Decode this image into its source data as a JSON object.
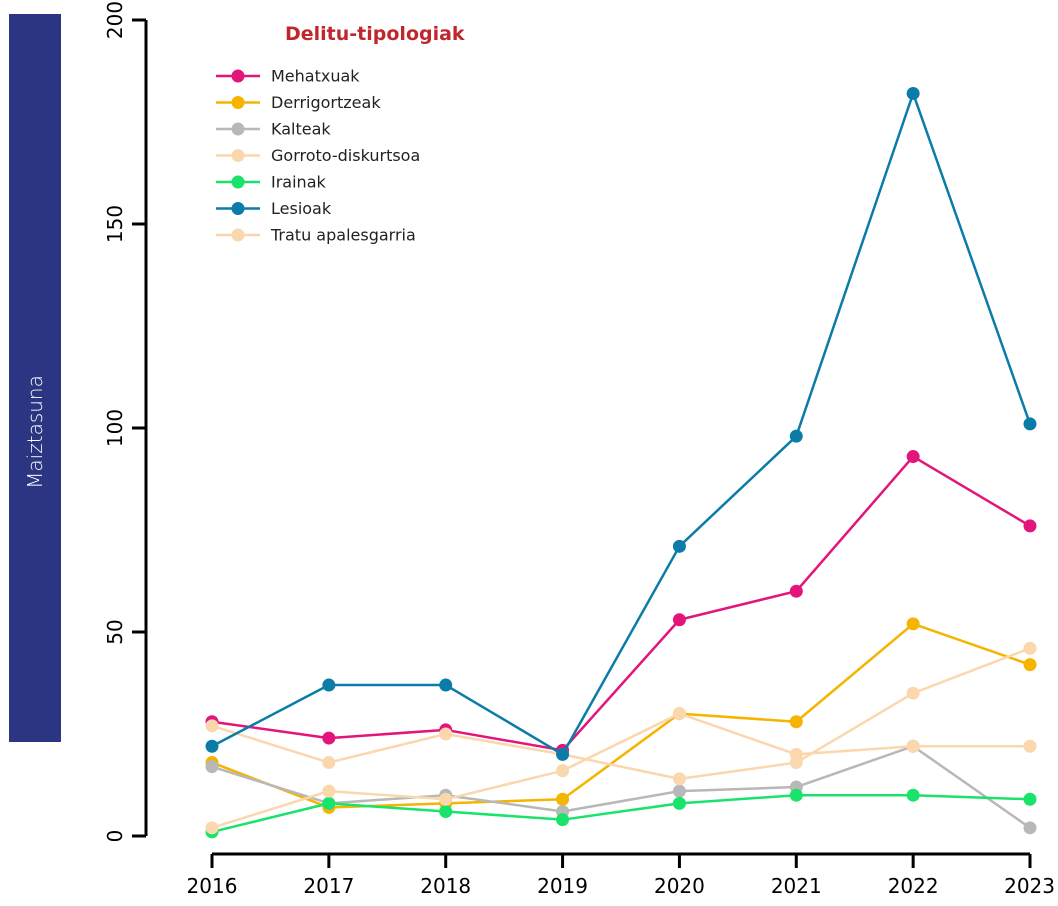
{
  "chart_data": {
    "type": "line",
    "ylabel": "Maiztasuna",
    "xlabel": "",
    "title": "",
    "ylim": [
      0,
      200
    ],
    "yticks": [
      0,
      50,
      100,
      150,
      200
    ],
    "x": [
      "2016",
      "2017",
      "2018",
      "2019",
      "2020",
      "2021",
      "2022",
      "2023"
    ],
    "legend": {
      "title": "Delitu-tipologiak",
      "title_color": "#c0272d",
      "position": "top-left"
    },
    "grid": false,
    "series": [
      {
        "name": "Mehatxuak",
        "color": "#e3147a",
        "values": [
          28,
          24,
          26,
          21,
          53,
          60,
          93,
          76
        ]
      },
      {
        "name": "Derrigortzeak",
        "color": "#f5b400",
        "values": [
          18,
          7,
          8,
          9,
          30,
          28,
          52,
          42
        ]
      },
      {
        "name": "Kalteak",
        "color": "#b8b8b8",
        "values": [
          17,
          8,
          10,
          6,
          11,
          12,
          22,
          2
        ]
      },
      {
        "name": "Gorroto-diskurtsoa",
        "color": "#fad7ad",
        "values": [
          27,
          18,
          25,
          20,
          14,
          18,
          35,
          46
        ]
      },
      {
        "name": "Irainak",
        "color": "#1ae36b",
        "values": [
          1,
          8,
          6,
          4,
          8,
          10,
          10,
          9
        ]
      },
      {
        "name": "Lesioak",
        "color": "#0b7ca8",
        "values": [
          22,
          37,
          37,
          20,
          71,
          98,
          182,
          101
        ]
      },
      {
        "name": "Tratu apalesgarria",
        "color": "#fad7ad",
        "values": [
          2,
          11,
          9,
          16,
          30,
          20,
          22,
          22
        ]
      }
    ]
  }
}
